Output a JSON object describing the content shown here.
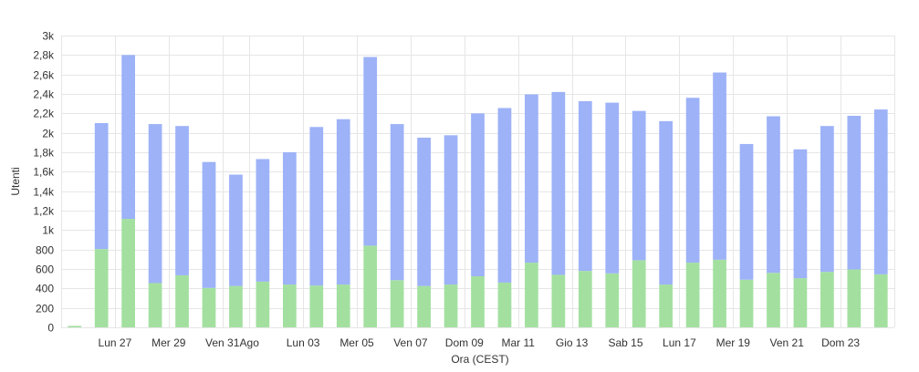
{
  "chart_data": {
    "type": "bar",
    "stacked": true,
    "xlabel": "Ora (CEST)",
    "ylabel": "Utenti",
    "ylim": [
      0,
      3000
    ],
    "yticks": [
      {
        "value": 0,
        "label": "0"
      },
      {
        "value": 200,
        "label": "200"
      },
      {
        "value": 400,
        "label": "400"
      },
      {
        "value": 600,
        "label": "600"
      },
      {
        "value": 800,
        "label": "800"
      },
      {
        "value": 1000,
        "label": "1k"
      },
      {
        "value": 1200,
        "label": "1,2k"
      },
      {
        "value": 1400,
        "label": "1,4k"
      },
      {
        "value": 1600,
        "label": "1,6k"
      },
      {
        "value": 1800,
        "label": "1,8k"
      },
      {
        "value": 2000,
        "label": "2k"
      },
      {
        "value": 2200,
        "label": "2,2k"
      },
      {
        "value": 2400,
        "label": "2,4k"
      },
      {
        "value": 2600,
        "label": "2,6k"
      },
      {
        "value": 2800,
        "label": "2,8k"
      },
      {
        "value": 3000,
        "label": "3k"
      }
    ],
    "x_tick_labels": [
      {
        "index": 2,
        "label": "Lun 27"
      },
      {
        "index": 4,
        "label": "Mer 29"
      },
      {
        "index": 6,
        "label": "Ven 31"
      },
      {
        "index": 7,
        "label": "Ago"
      },
      {
        "index": 9,
        "label": "Lun 03"
      },
      {
        "index": 11,
        "label": "Mer 05"
      },
      {
        "index": 13,
        "label": "Ven 07"
      },
      {
        "index": 15,
        "label": "Dom 09"
      },
      {
        "index": 17,
        "label": "Mar 11"
      },
      {
        "index": 19,
        "label": "Gio 13"
      },
      {
        "index": 21,
        "label": "Sab 15"
      },
      {
        "index": 23,
        "label": "Lun 17"
      },
      {
        "index": 25,
        "label": "Mer 19"
      },
      {
        "index": 27,
        "label": "Ven 21"
      },
      {
        "index": 29,
        "label": "Dom 23"
      }
    ],
    "bar_count": 31,
    "series": [
      {
        "color": "#a3e0a0",
        "values": [
          15,
          805,
          1115,
          455,
          535,
          405,
          425,
          470,
          440,
          430,
          440,
          840,
          485,
          425,
          440,
          525,
          460,
          665,
          540,
          580,
          555,
          690,
          440,
          665,
          695,
          490,
          560,
          505,
          570,
          595,
          545
        ]
      },
      {
        "color": "#9db2f7",
        "values": [
          0,
          1295,
          1685,
          1635,
          1535,
          1295,
          1145,
          1260,
          1360,
          1630,
          1700,
          1940,
          1605,
          1525,
          1535,
          1675,
          1795,
          1730,
          1880,
          1745,
          1755,
          1535,
          1680,
          1695,
          1925,
          1395,
          1610,
          1325,
          1500,
          1580,
          1695
        ]
      }
    ],
    "grid": true,
    "colors": {
      "grid": "#e6e6e6",
      "axis_text": "#333333"
    }
  }
}
